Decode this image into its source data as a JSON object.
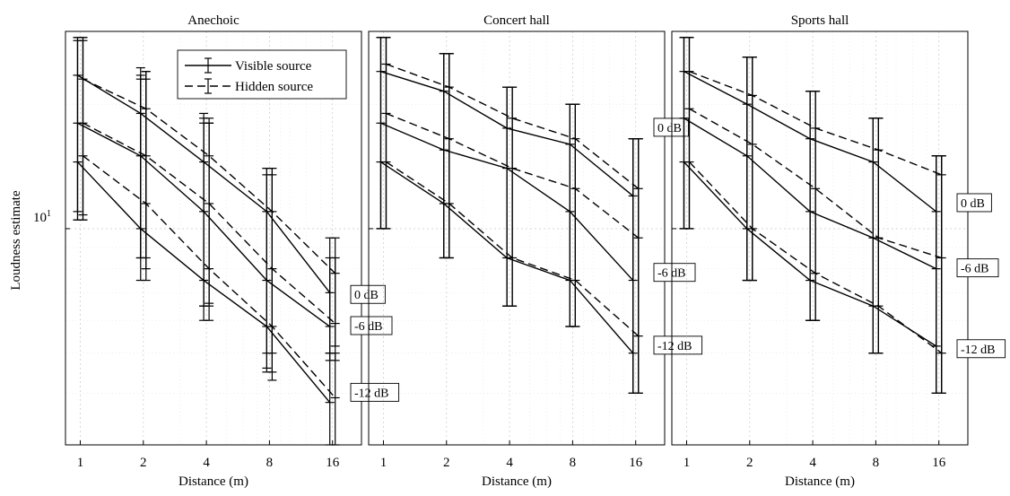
{
  "chart_data": {
    "type": "line",
    "ylabel": "Loudness estimate",
    "xlabel": "Distance (m)",
    "x_scale": "log2",
    "y_scale": "log",
    "x_ticks": [
      1,
      2,
      4,
      8,
      16
    ],
    "x_tick_labels": [
      "1",
      "2",
      "4",
      "8",
      "16"
    ],
    "y_tick_label": {
      "base": "10",
      "exp": "1"
    },
    "xlim": [
      0.85,
      22
    ],
    "ylim": [
      3.0,
      30
    ],
    "grid": true,
    "legend": {
      "placement": "top-right of first panel",
      "entries": [
        {
          "label": "Visible source",
          "style": "solid"
        },
        {
          "label": "Hidden source",
          "style": "dashed"
        }
      ]
    },
    "panels": [
      {
        "title": "Anechoic",
        "x": [
          1,
          2,
          4,
          8,
          16
        ],
        "series": [
          {
            "level": "0 dB",
            "source": "visible",
            "y": [
              23.5,
              19.0,
              14.5,
              11.0,
              7.0
            ],
            "y_low": [
              11.0,
              8.5,
              6.5,
              5.0,
              5.0
            ],
            "y_high": [
              29.0,
              24.5,
              19.0,
              14.0,
              9.5
            ]
          },
          {
            "level": "0 dB",
            "source": "hidden",
            "y": [
              23.0,
              19.5,
              15.0,
              11.0,
              7.8
            ],
            "y_low": [
              10.5,
              8.5,
              6.6,
              5.0,
              5.2
            ],
            "y_high": [
              28.5,
              24.0,
              18.5,
              14.0,
              9.5
            ]
          },
          {
            "level": "-6 dB",
            "source": "visible",
            "y": [
              18.0,
              15.0,
              11.0,
              7.5,
              5.8
            ],
            "y_low": [
              10.5,
              8.5,
              6.5,
              4.6,
              4.8
            ],
            "y_high": [
              28.5,
              23.5,
              18.5,
              14.0,
              8.5
            ]
          },
          {
            "level": "-6 dB",
            "source": "hidden",
            "y": [
              18.0,
              15.0,
              11.5,
              8.0,
              5.9
            ],
            "y_low": [
              10.5,
              8.0,
              6.5,
              4.5,
              4.8
            ],
            "y_high": [
              29.0,
              24.0,
              18.0,
              13.5,
              8.5
            ]
          },
          {
            "level": "-12 dB",
            "source": "visible",
            "y": [
              14.5,
              10.0,
              7.5,
              5.8,
              3.8
            ],
            "y_low": [
              10.5,
              7.5,
              6.0,
              4.5,
              3.0
            ],
            "y_high": [
              29.0,
              23.0,
              18.0,
              13.5,
              5.0
            ]
          },
          {
            "level": "-12 dB",
            "source": "hidden",
            "y": [
              15.0,
              11.5,
              8.0,
              5.8,
              3.9
            ],
            "y_low": [
              10.8,
              7.5,
              6.0,
              4.3,
              3.0
            ],
            "y_high": [
              29.0,
              23.0,
              18.0,
              14.0,
              5.0
            ]
          }
        ],
        "level_labels": [
          {
            "text": "0 dB",
            "y": 6.9
          },
          {
            "text": "-6 dB",
            "y": 5.8
          },
          {
            "text": "-12 dB",
            "y": 4.0
          }
        ]
      },
      {
        "title": "Concert hall",
        "x": [
          1,
          2,
          4,
          8,
          16
        ],
        "series": [
          {
            "level": "0 dB",
            "source": "visible",
            "y": [
              24.0,
              21.5,
              17.5,
              16.0,
              12.0
            ],
            "y_low": [
              10.0,
              8.5,
              6.5,
              5.8,
              4.0
            ],
            "y_high": [
              29.0,
              26.5,
              22.0,
              20.0,
              16.5
            ]
          },
          {
            "level": "0 dB",
            "source": "hidden",
            "y": [
              25.0,
              22.0,
              18.5,
              16.5,
              12.5
            ],
            "y_low": [
              10.0,
              8.5,
              6.5,
              5.8,
              4.0
            ],
            "y_high": [
              29.0,
              26.5,
              22.0,
              20.0,
              16.5
            ]
          },
          {
            "level": "-6 dB",
            "source": "visible",
            "y": [
              18.0,
              15.5,
              14.0,
              11.0,
              7.5
            ],
            "y_low": [
              10.0,
              8.5,
              6.5,
              5.8,
              4.0
            ],
            "y_high": [
              29.0,
              26.5,
              22.0,
              20.0,
              16.5
            ]
          },
          {
            "level": "-6 dB",
            "source": "hidden",
            "y": [
              19.0,
              16.5,
              14.0,
              12.5,
              9.5
            ],
            "y_low": [
              10.0,
              8.5,
              6.5,
              5.8,
              4.0
            ],
            "y_high": [
              29.0,
              26.5,
              22.0,
              20.0,
              16.5
            ]
          },
          {
            "level": "-12 dB",
            "source": "visible",
            "y": [
              14.5,
              11.5,
              8.5,
              7.5,
              5.0
            ],
            "y_low": [
              10.0,
              8.5,
              6.5,
              5.8,
              4.0
            ],
            "y_high": [
              29.0,
              26.5,
              22.0,
              20.0,
              16.5
            ]
          },
          {
            "level": "-12 dB",
            "source": "hidden",
            "y": [
              14.5,
              11.5,
              8.5,
              7.5,
              5.5
            ],
            "y_low": [
              10.0,
              8.5,
              6.5,
              5.8,
              4.0
            ],
            "y_high": [
              29.0,
              26.5,
              22.0,
              20.0,
              16.5
            ]
          }
        ],
        "level_labels": [
          {
            "text": "0 dB",
            "y": 17.5
          },
          {
            "text": "-6 dB",
            "y": 7.8
          },
          {
            "text": "-12 dB",
            "y": 5.2
          }
        ]
      },
      {
        "title": "Sports hall",
        "x": [
          1,
          2,
          4,
          8,
          16
        ],
        "series": [
          {
            "level": "0 dB",
            "source": "visible",
            "y": [
              24.0,
              20.0,
              16.5,
              14.5,
              11.0
            ],
            "y_low": [
              10.0,
              7.5,
              6.0,
              5.0,
              4.0
            ],
            "y_high": [
              29.0,
              26.0,
              21.5,
              18.5,
              15.0
            ]
          },
          {
            "level": "0 dB",
            "source": "hidden",
            "y": [
              24.0,
              21.0,
              17.5,
              15.5,
              13.5
            ],
            "y_low": [
              10.0,
              7.5,
              6.0,
              5.0,
              4.0
            ],
            "y_high": [
              29.0,
              26.0,
              21.5,
              18.5,
              15.0
            ]
          },
          {
            "level": "-6 dB",
            "source": "visible",
            "y": [
              18.5,
              15.0,
              11.0,
              9.5,
              8.0
            ],
            "y_low": [
              10.0,
              7.5,
              6.0,
              5.0,
              4.0
            ],
            "y_high": [
              29.0,
              26.0,
              21.5,
              18.5,
              15.0
            ]
          },
          {
            "level": "-6 dB",
            "source": "hidden",
            "y": [
              19.5,
              16.0,
              12.5,
              9.5,
              8.5
            ],
            "y_low": [
              10.0,
              7.5,
              6.0,
              5.0,
              4.0
            ],
            "y_high": [
              29.0,
              26.0,
              21.5,
              18.5,
              15.0
            ]
          },
          {
            "level": "-12 dB",
            "source": "visible",
            "y": [
              14.5,
              10.0,
              7.5,
              6.5,
              5.2
            ],
            "y_low": [
              10.0,
              7.5,
              6.0,
              5.0,
              4.0
            ],
            "y_high": [
              29.0,
              26.0,
              21.5,
              18.5,
              15.0
            ]
          },
          {
            "level": "-12 dB",
            "source": "hidden",
            "y": [
              14.5,
              10.0,
              7.8,
              6.5,
              5.0
            ],
            "y_low": [
              10.0,
              7.5,
              6.0,
              5.0,
              4.0
            ],
            "y_high": [
              29.0,
              26.0,
              21.5,
              18.5,
              15.0
            ]
          }
        ],
        "level_labels": [
          {
            "text": "0 dB",
            "y": 11.5
          },
          {
            "text": "-6 dB",
            "y": 8.0
          },
          {
            "text": "-12 dB",
            "y": 5.1
          }
        ]
      }
    ]
  }
}
